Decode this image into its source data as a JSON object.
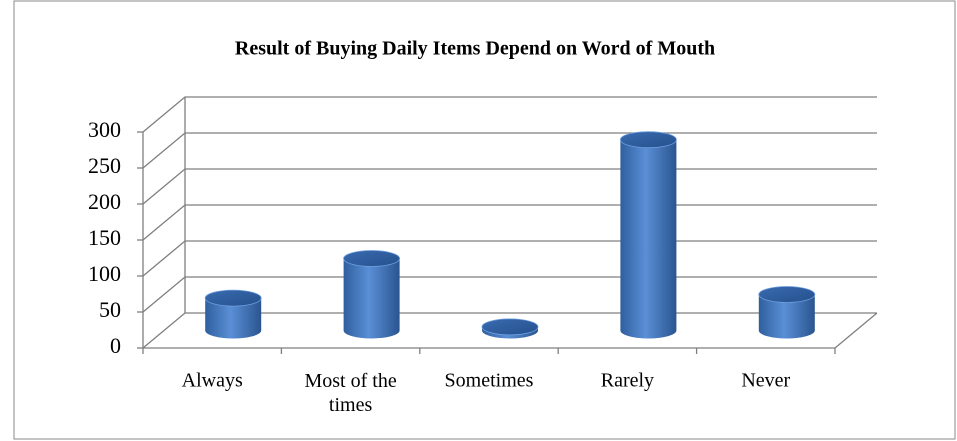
{
  "chart_data": {
    "type": "bar",
    "title": "Result of Buying Daily Items Depend on Word of Mouth",
    "categories": [
      "Always",
      "Most of the times",
      "Sometimes",
      "Rarely",
      "Never"
    ],
    "values": [
      45,
      100,
      5,
      265,
      50
    ],
    "color": "#4f81bd",
    "ylim": [
      0,
      300
    ],
    "yticks": [
      0,
      50,
      100,
      150,
      200,
      250,
      300
    ],
    "grid": true
  }
}
